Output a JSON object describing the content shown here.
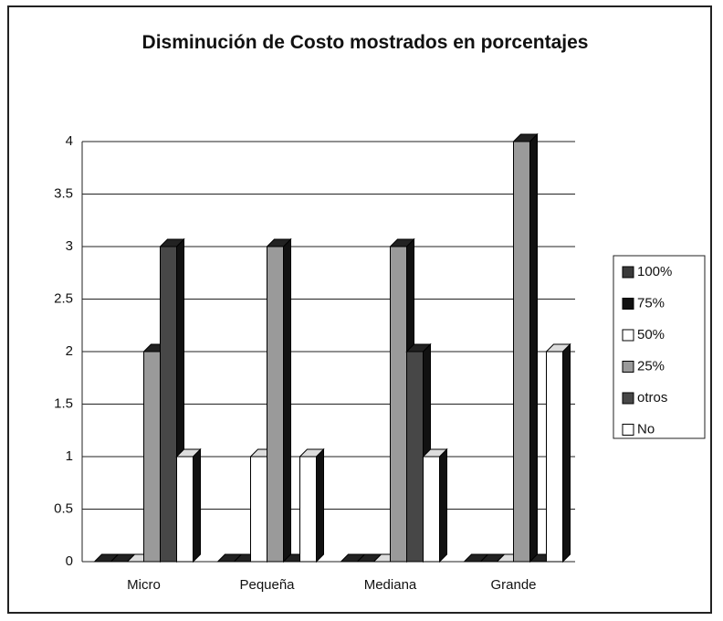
{
  "chart_data": {
    "type": "bar3d",
    "title": "Disminución de Costo mostrados en porcentajes",
    "categories": [
      "Micro",
      "Pequeña",
      "Mediana",
      "Grande"
    ],
    "series": [
      {
        "name": "100%",
        "color": "#3a3a3a",
        "values": [
          0,
          0,
          0,
          0
        ]
      },
      {
        "name": "75%",
        "color": "#111111",
        "values": [
          0,
          0,
          0,
          0
        ]
      },
      {
        "name": "50%",
        "color": "#ffffff",
        "values": [
          0,
          1,
          0,
          0
        ]
      },
      {
        "name": "25%",
        "color": "#9a9a9a",
        "values": [
          2,
          3,
          3,
          4
        ]
      },
      {
        "name": "otros",
        "color": "#474747",
        "values": [
          3,
          0,
          2,
          0
        ]
      },
      {
        "name": "No",
        "color": "#ffffff",
        "values": [
          1,
          1,
          1,
          2
        ]
      }
    ],
    "ylim": [
      0,
      4
    ],
    "yticks": [
      0,
      0.5,
      1,
      1.5,
      2,
      2.5,
      3,
      3.5,
      4
    ],
    "grid": true,
    "legend": "right"
  }
}
